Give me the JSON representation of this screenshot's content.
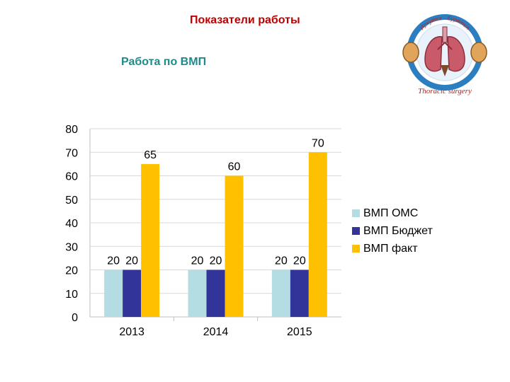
{
  "header": {
    "title": "Показатели работы",
    "subtitle": "Работа по ВМП"
  },
  "logo": {
    "top_text": "Иркутск · Бурятия",
    "bottom_text": "Thoracic surgery"
  },
  "chart_data": {
    "type": "bar",
    "categories": [
      "2013",
      "2014",
      "2015"
    ],
    "series": [
      {
        "name": "ВМП ОМС",
        "values": [
          20,
          20,
          20
        ],
        "color": "#b4dde3"
      },
      {
        "name": "ВМП Бюджет",
        "values": [
          20,
          20,
          20
        ],
        "color": "#33349a"
      },
      {
        "name": "ВМП факт",
        "values": [
          65,
          60,
          70
        ],
        "color": "#ffc000"
      }
    ],
    "ylim": [
      0,
      80
    ],
    "yticks": [
      0,
      10,
      20,
      30,
      40,
      50,
      60,
      70,
      80
    ],
    "grid": true,
    "legend": "right",
    "data_labels": true
  }
}
